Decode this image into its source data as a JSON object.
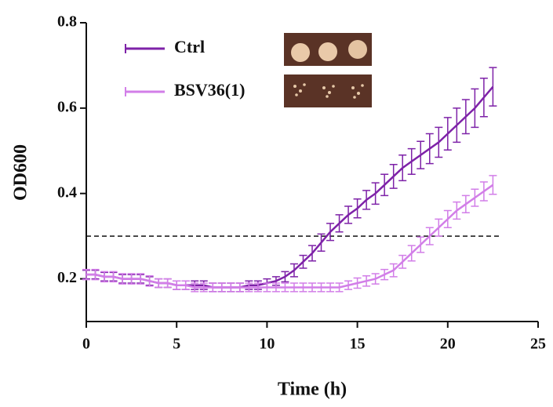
{
  "chart_data": {
    "type": "line",
    "ylabel": "OD600",
    "xlabel": "Time (h)",
    "x": [
      0,
      0.5,
      1,
      1.5,
      2,
      2.5,
      3,
      3.5,
      4,
      4.5,
      5,
      5.5,
      6,
      6.5,
      7,
      7.5,
      8,
      8.5,
      9,
      9.5,
      10,
      10.5,
      11,
      11.5,
      12,
      12.5,
      13,
      13.5,
      14,
      14.5,
      15,
      15.5,
      16,
      16.5,
      17,
      17.5,
      18,
      18.5,
      19,
      19.5,
      20,
      20.5,
      21,
      21.5,
      22,
      22.5
    ],
    "series": [
      {
        "name": "Ctrl",
        "color": "#7e22a8",
        "values": [
          0.21,
          0.21,
          0.205,
          0.205,
          0.2,
          0.2,
          0.2,
          0.195,
          0.19,
          0.19,
          0.185,
          0.185,
          0.185,
          0.185,
          0.18,
          0.18,
          0.18,
          0.18,
          0.185,
          0.185,
          0.19,
          0.195,
          0.205,
          0.22,
          0.24,
          0.26,
          0.285,
          0.31,
          0.33,
          0.35,
          0.365,
          0.385,
          0.4,
          0.42,
          0.44,
          0.46,
          0.475,
          0.49,
          0.505,
          0.52,
          0.54,
          0.56,
          0.58,
          0.6,
          0.625,
          0.65
        ],
        "errors": [
          0.01,
          0.01,
          0.01,
          0.01,
          0.01,
          0.01,
          0.01,
          0.01,
          0.01,
          0.01,
          0.01,
          0.01,
          0.01,
          0.01,
          0.01,
          0.01,
          0.01,
          0.01,
          0.01,
          0.01,
          0.01,
          0.01,
          0.012,
          0.015,
          0.015,
          0.018,
          0.02,
          0.02,
          0.02,
          0.02,
          0.022,
          0.022,
          0.025,
          0.025,
          0.028,
          0.03,
          0.03,
          0.032,
          0.035,
          0.035,
          0.038,
          0.04,
          0.04,
          0.045,
          0.045,
          0.045
        ]
      },
      {
        "name": "BSV36(1)",
        "color": "#d27ee8",
        "values": [
          0.21,
          0.21,
          0.205,
          0.205,
          0.2,
          0.2,
          0.2,
          0.195,
          0.19,
          0.19,
          0.185,
          0.185,
          0.18,
          0.18,
          0.18,
          0.18,
          0.18,
          0.18,
          0.18,
          0.18,
          0.18,
          0.18,
          0.18,
          0.18,
          0.18,
          0.18,
          0.18,
          0.18,
          0.18,
          0.185,
          0.19,
          0.195,
          0.2,
          0.21,
          0.22,
          0.24,
          0.26,
          0.28,
          0.3,
          0.32,
          0.34,
          0.36,
          0.375,
          0.39,
          0.405,
          0.42
        ],
        "errors": [
          0.012,
          0.012,
          0.012,
          0.012,
          0.012,
          0.012,
          0.012,
          0.012,
          0.01,
          0.01,
          0.01,
          0.01,
          0.01,
          0.01,
          0.01,
          0.01,
          0.01,
          0.01,
          0.01,
          0.01,
          0.01,
          0.01,
          0.01,
          0.01,
          0.01,
          0.01,
          0.01,
          0.01,
          0.01,
          0.01,
          0.012,
          0.012,
          0.012,
          0.012,
          0.015,
          0.015,
          0.018,
          0.018,
          0.02,
          0.02,
          0.02,
          0.02,
          0.02,
          0.02,
          0.022,
          0.022
        ]
      }
    ],
    "xlim": [
      0,
      25
    ],
    "xticks": [
      0,
      5,
      10,
      15,
      20,
      25
    ],
    "ylim": [
      0.1,
      0.8
    ],
    "yticks": [
      0.2,
      0.4,
      0.6,
      0.8
    ],
    "reference_line": 0.3
  }
}
